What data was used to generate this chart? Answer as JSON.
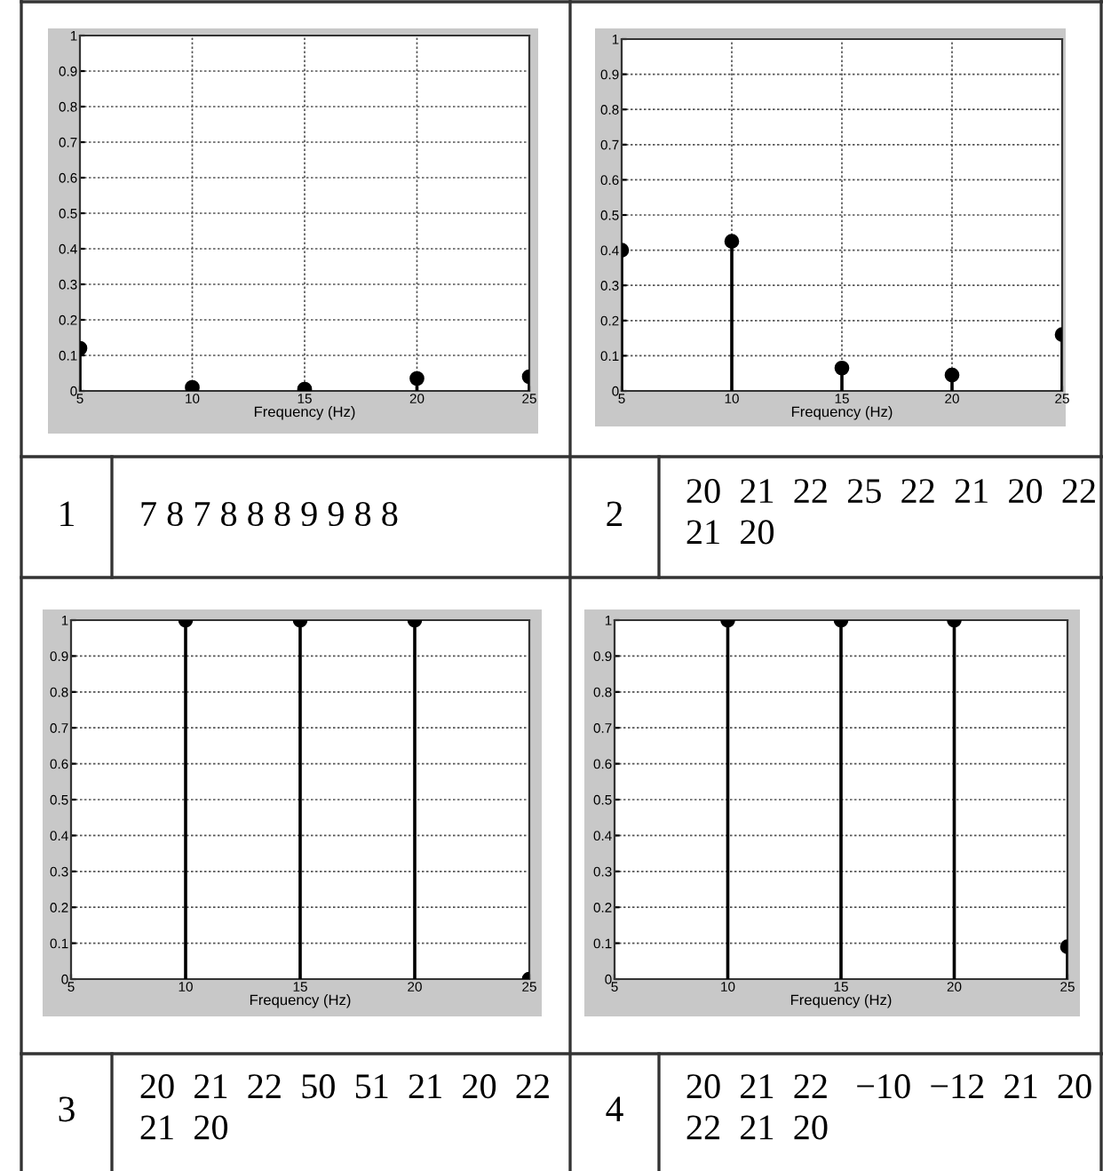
{
  "chart_data": [
    {
      "type": "lollipop",
      "xlabel": "Frequency (Hz)",
      "x": [
        5,
        10,
        15,
        20,
        25
      ],
      "values": [
        0.12,
        0.01,
        0.005,
        0.035,
        0.04
      ],
      "color": "#000000",
      "marker": "circle",
      "grid": true,
      "xlim": [
        5,
        25
      ],
      "ylim": [
        0,
        1
      ],
      "xticks": [
        5,
        10,
        15,
        20,
        25
      ],
      "yticks": [
        0,
        0.1,
        0.2,
        0.3,
        0.4,
        0.5,
        0.6,
        0.7,
        0.8,
        0.9,
        1
      ]
    },
    {
      "type": "lollipop",
      "xlabel": "Frequency (Hz)",
      "x": [
        5,
        10,
        15,
        20,
        25
      ],
      "values": [
        0.4,
        0.425,
        0.065,
        0.045,
        0.16
      ],
      "color": "#000000",
      "marker": "circle",
      "grid": true,
      "xlim": [
        5,
        25
      ],
      "ylim": [
        0,
        1
      ],
      "xticks": [
        5,
        10,
        15,
        20,
        25
      ],
      "yticks": [
        0,
        0.1,
        0.2,
        0.3,
        0.4,
        0.5,
        0.6,
        0.7,
        0.8,
        0.9,
        1
      ]
    },
    {
      "type": "other",
      "annotations": [
        "1",
        "7 8 7 8 8 8 9 9 8 8"
      ]
    },
    {
      "type": "other",
      "annotations": [
        "2",
        "20  21  22  25  22  21  20  22\n21  20"
      ]
    },
    {
      "type": "lollipop",
      "xlabel": "Frequency (Hz)",
      "x": [
        10,
        15,
        20,
        25
      ],
      "values": [
        1,
        1,
        1,
        0
      ],
      "color": "#000000",
      "marker": "circle",
      "grid": true,
      "xlim": [
        5,
        25
      ],
      "ylim": [
        0,
        1
      ],
      "xticks": [
        5,
        10,
        15,
        20,
        25
      ],
      "yticks": [
        0,
        0.1,
        0.2,
        0.3,
        0.4,
        0.5,
        0.6,
        0.7,
        0.8,
        0.9,
        1
      ]
    },
    {
      "type": "lollipop",
      "xlabel": "Frequency (Hz)",
      "x": [
        10,
        15,
        20,
        25
      ],
      "values": [
        1,
        1,
        1,
        0.09
      ],
      "color": "#000000",
      "marker": "circle",
      "grid": true,
      "xlim": [
        5,
        25
      ],
      "ylim": [
        0,
        1
      ],
      "xticks": [
        5,
        10,
        15,
        20,
        25
      ],
      "yticks": [
        0,
        0.1,
        0.2,
        0.3,
        0.4,
        0.5,
        0.6,
        0.7,
        0.8,
        0.9,
        1
      ]
    },
    {
      "type": "other",
      "annotations": [
        "3",
        "20  21  22  50  51  21  20  22\n21  20"
      ]
    },
    {
      "type": "other",
      "annotations": [
        "4",
        "20  21  22   −10  −12  21  20\n22  21  20"
      ]
    }
  ]
}
